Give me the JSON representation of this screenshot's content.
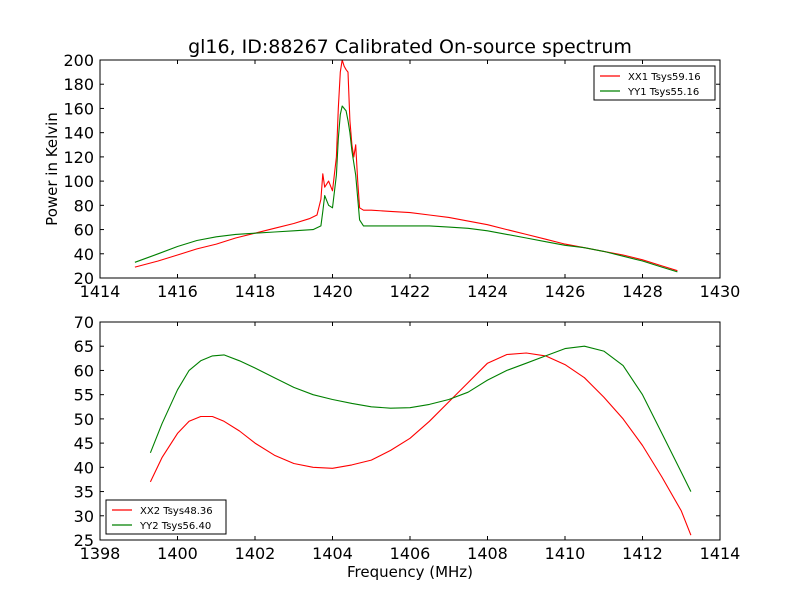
{
  "chart_data": [
    {
      "type": "line",
      "title": "gl16, ID:88267 Calibrated On-source spectrum",
      "xlabel": "",
      "ylabel": "Power in Kelvin",
      "xlim": [
        1414,
        1430
      ],
      "ylim": [
        20,
        200
      ],
      "xticks": [
        1414,
        1416,
        1418,
        1420,
        1422,
        1424,
        1426,
        1428,
        1430
      ],
      "yticks": [
        20,
        40,
        60,
        80,
        100,
        120,
        140,
        160,
        180,
        200
      ],
      "legend_position": "top-right",
      "grid": false,
      "series": [
        {
          "name": "XX1 Tsys59.16",
          "color": "#ff0000",
          "x": [
            1414.9,
            1415.5,
            1416.0,
            1416.5,
            1417.0,
            1417.5,
            1418.0,
            1418.5,
            1419.0,
            1419.4,
            1419.6,
            1419.7,
            1419.75,
            1419.8,
            1419.9,
            1420.0,
            1420.1,
            1420.15,
            1420.2,
            1420.25,
            1420.3,
            1420.35,
            1420.4,
            1420.45,
            1420.5,
            1420.55,
            1420.6,
            1420.65,
            1420.7,
            1420.8,
            1421.0,
            1421.5,
            1422.0,
            1422.5,
            1423.0,
            1423.5,
            1424.0,
            1424.5,
            1425.0,
            1425.5,
            1426.0,
            1426.5,
            1427.0,
            1427.5,
            1428.0,
            1428.5,
            1428.9
          ],
          "y": [
            29,
            34,
            39,
            44,
            48,
            53,
            57,
            61,
            65,
            69,
            72,
            85,
            106,
            95,
            100,
            92,
            120,
            160,
            190,
            200,
            195,
            192,
            190,
            150,
            130,
            120,
            130,
            100,
            78,
            76,
            76,
            75,
            74,
            72,
            70,
            67,
            64,
            60,
            56,
            52,
            48,
            45,
            42,
            39,
            35,
            30,
            26
          ]
        },
        {
          "name": "YY1 Tsys55.16",
          "color": "#008000",
          "x": [
            1414.9,
            1415.5,
            1416.0,
            1416.5,
            1417.0,
            1417.5,
            1418.0,
            1418.5,
            1419.0,
            1419.5,
            1419.7,
            1419.75,
            1419.8,
            1419.9,
            1420.0,
            1420.1,
            1420.15,
            1420.2,
            1420.25,
            1420.3,
            1420.35,
            1420.4,
            1420.45,
            1420.5,
            1420.6,
            1420.7,
            1420.8,
            1421.0,
            1421.5,
            1422.0,
            1422.5,
            1423.0,
            1423.5,
            1424.0,
            1424.5,
            1425.0,
            1425.5,
            1426.0,
            1426.5,
            1427.0,
            1427.5,
            1428.0,
            1428.5,
            1428.9
          ],
          "y": [
            33,
            40,
            46,
            51,
            54,
            56,
            57,
            58,
            59,
            60,
            63,
            75,
            88,
            80,
            78,
            105,
            135,
            155,
            162,
            160,
            158,
            150,
            140,
            125,
            105,
            68,
            63,
            63,
            63,
            63,
            63,
            62,
            61,
            59,
            56,
            53,
            50,
            47,
            45,
            42,
            38,
            34,
            29,
            25
          ]
        }
      ]
    },
    {
      "type": "line",
      "title": "",
      "xlabel": "Frequency (MHz)",
      "ylabel": "",
      "xlim": [
        1398,
        1414
      ],
      "ylim": [
        25,
        70
      ],
      "xticks": [
        1398,
        1400,
        1402,
        1404,
        1406,
        1408,
        1410,
        1412,
        1414
      ],
      "yticks": [
        25,
        30,
        35,
        40,
        45,
        50,
        55,
        60,
        65,
        70
      ],
      "legend_position": "bottom-left",
      "grid": false,
      "series": [
        {
          "name": "XX2 Tsys48.36",
          "color": "#ff0000",
          "x": [
            1399.3,
            1399.6,
            1400.0,
            1400.3,
            1400.6,
            1400.9,
            1401.2,
            1401.6,
            1402.0,
            1402.5,
            1403.0,
            1403.5,
            1404.0,
            1404.5,
            1405.0,
            1405.5,
            1406.0,
            1406.5,
            1407.0,
            1407.5,
            1408.0,
            1408.5,
            1409.0,
            1409.5,
            1410.0,
            1410.5,
            1411.0,
            1411.5,
            1412.0,
            1412.5,
            1413.0,
            1413.25
          ],
          "y": [
            37,
            42,
            47,
            49.5,
            50.5,
            50.5,
            49.5,
            47.5,
            45,
            42.5,
            40.8,
            40,
            39.8,
            40.5,
            41.5,
            43.5,
            46,
            49.5,
            53.5,
            57.5,
            61.5,
            63.3,
            63.6,
            63,
            61.2,
            58.5,
            54.5,
            50,
            44.5,
            38,
            31,
            26
          ]
        },
        {
          "name": "YY2 Tsys56.40",
          "color": "#008000",
          "x": [
            1399.3,
            1399.6,
            1400.0,
            1400.3,
            1400.6,
            1400.9,
            1401.2,
            1401.6,
            1402.0,
            1402.5,
            1403.0,
            1403.5,
            1404.0,
            1404.5,
            1405.0,
            1405.5,
            1406.0,
            1406.5,
            1407.0,
            1407.5,
            1408.0,
            1408.5,
            1409.0,
            1409.5,
            1410.0,
            1410.5,
            1411.0,
            1411.5,
            1412.0,
            1412.5,
            1413.0,
            1413.25
          ],
          "y": [
            43,
            49,
            56,
            60,
            62,
            63,
            63.2,
            62,
            60.5,
            58.5,
            56.5,
            55,
            54,
            53.2,
            52.5,
            52.2,
            52.3,
            53,
            54,
            55.5,
            58,
            60,
            61.5,
            63,
            64.5,
            65,
            64,
            61,
            55,
            47,
            39,
            35
          ]
        }
      ]
    }
  ]
}
